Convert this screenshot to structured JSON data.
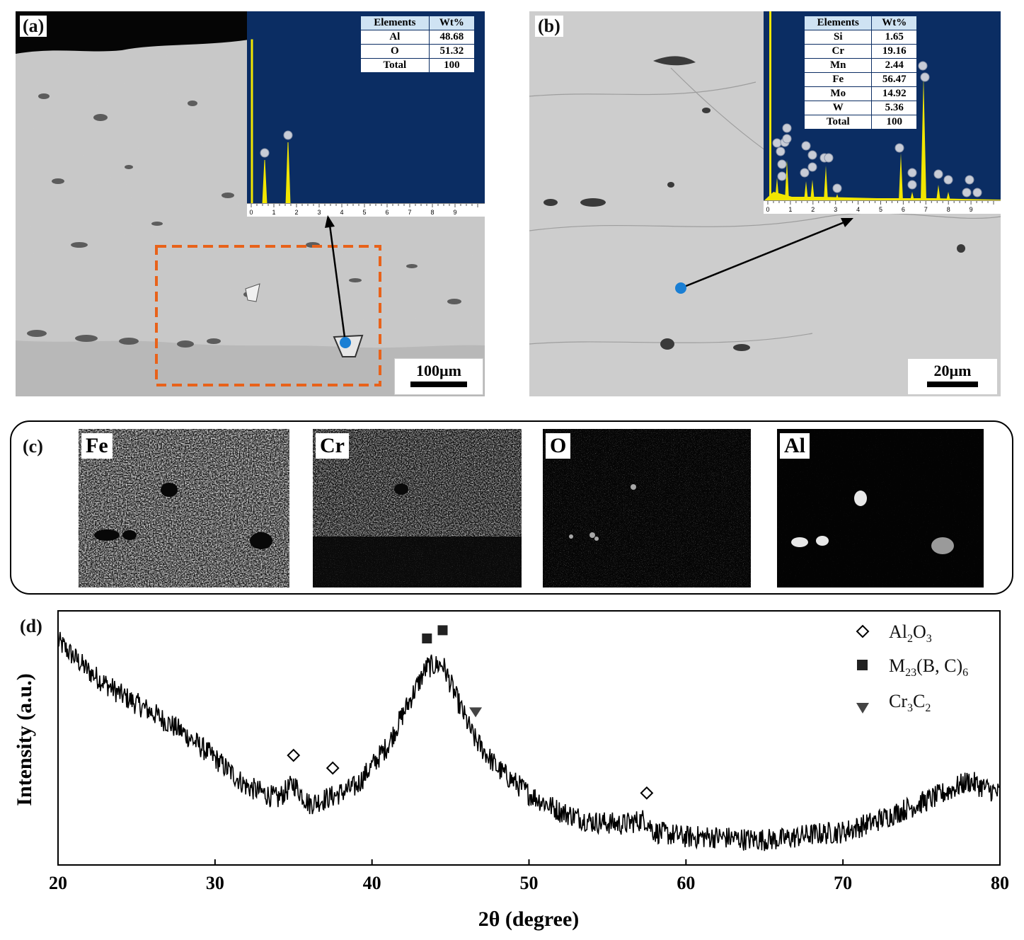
{
  "panels": {
    "a": {
      "label": "(a)",
      "scale_label": "100µm",
      "eds_table": {
        "headers": [
          "Elements",
          "Wt%"
        ],
        "rows": [
          [
            "Al",
            "48.68"
          ],
          [
            "O",
            "51.32"
          ],
          [
            "Total",
            "100"
          ]
        ]
      },
      "eds_ticks": [
        "0",
        "1",
        "2",
        "3",
        "4",
        "5",
        "6",
        "7",
        "8",
        "9"
      ]
    },
    "b": {
      "label": "(b)",
      "scale_label": "20µm",
      "eds_table": {
        "headers": [
          "Elements",
          "Wt%"
        ],
        "rows": [
          [
            "Si",
            "1.65"
          ],
          [
            "Cr",
            "19.16"
          ],
          [
            "Mn",
            "2.44"
          ],
          [
            "Fe",
            "56.47"
          ],
          [
            "Mo",
            "14.92"
          ],
          [
            "W",
            "5.36"
          ],
          [
            "Total",
            "100"
          ]
        ]
      },
      "eds_ticks": [
        "0",
        "1",
        "2",
        "3",
        "4",
        "5",
        "6",
        "7",
        "8",
        "9"
      ]
    },
    "c": {
      "label": "(c)",
      "maps": [
        "Fe",
        "Cr",
        "O",
        "Al"
      ]
    },
    "d": {
      "label": "(d)"
    }
  },
  "colors": {
    "eds_background": "#0b2d63",
    "eds_peak": "#f2e600",
    "marker_dot": "#1a7fd4",
    "roi_box": "#e8621a"
  },
  "chart_data": {
    "type": "line",
    "title": "",
    "xlabel": "2θ (degree)",
    "ylabel": "Intensity (a.u.)",
    "xlim": [
      20,
      80
    ],
    "ylim": [
      0,
      100
    ],
    "xticks": [
      20,
      30,
      40,
      50,
      60,
      70,
      80
    ],
    "yticks_shown": false,
    "grid": false,
    "legend_position": "top-right",
    "series": [
      {
        "x": [
          20,
          22,
          24,
          26,
          28,
          30,
          32,
          34,
          35,
          36,
          37.5,
          39,
          41,
          42.5,
          43.5,
          44.5,
          45.5,
          46.5,
          48,
          50,
          52,
          54,
          56,
          57.4,
          58,
          60,
          62,
          64,
          66,
          68,
          70,
          72,
          74,
          76,
          78,
          80
        ],
        "y": [
          88,
          76,
          67,
          60,
          52,
          42,
          31,
          26,
          32,
          24,
          27,
          31,
          47,
          66,
          78,
          79,
          64,
          50,
          38,
          28,
          21,
          17,
          16,
          18,
          13,
          11,
          11,
          10,
          10,
          12,
          13,
          17,
          22,
          27,
          33,
          28
        ]
      }
    ],
    "legend": [
      {
        "symbol": "diamond-open",
        "label": "Al2O3"
      },
      {
        "symbol": "square-filled",
        "label": "M23(B, C)6"
      },
      {
        "symbol": "triangle-down-filled",
        "label": "Cr3C2"
      }
    ],
    "annotations": [
      {
        "phase": "Al2O3",
        "symbol": "diamond-open",
        "x": 35.0
      },
      {
        "phase": "Al2O3",
        "symbol": "diamond-open",
        "x": 37.5
      },
      {
        "phase": "Al2O3",
        "symbol": "diamond-open",
        "x": 57.5
      },
      {
        "phase": "M23(B, C)6",
        "symbol": "square-filled",
        "x": 43.5
      },
      {
        "phase": "M23(B, C)6",
        "symbol": "square-filled",
        "x": 44.5
      },
      {
        "phase": "Cr3C2",
        "symbol": "triangle-down-filled",
        "x": 46.6
      }
    ]
  }
}
